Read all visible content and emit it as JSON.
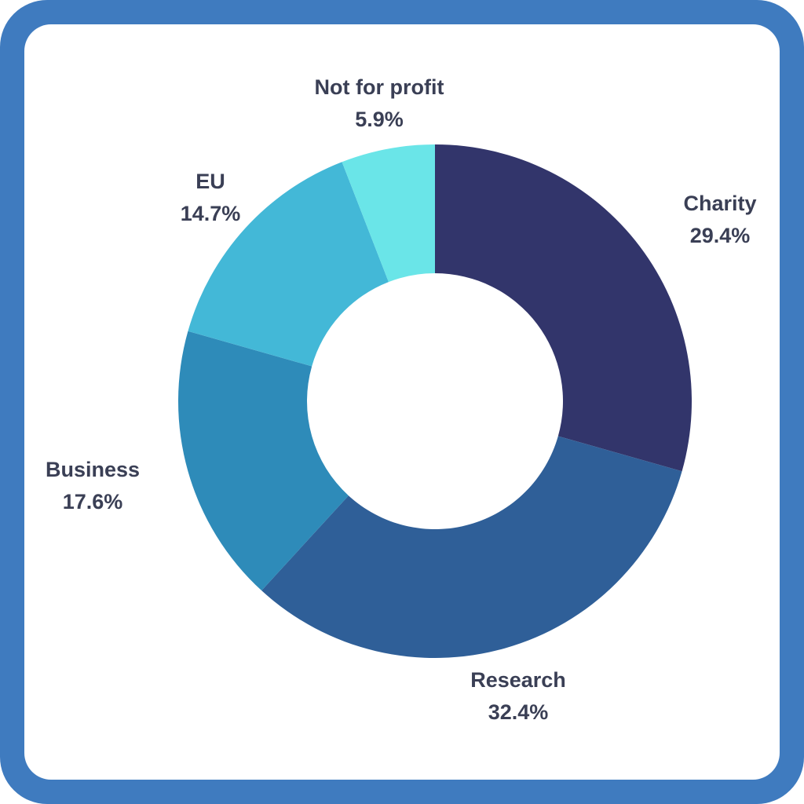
{
  "chart_data": {
    "type": "pie",
    "variant": "donut",
    "legend": "none",
    "slices": [
      {
        "label": "Charity",
        "value": 29.4,
        "display": "29.4%",
        "color": "#32356b"
      },
      {
        "label": "Research",
        "value": 32.4,
        "display": "32.4%",
        "color": "#2f5f98"
      },
      {
        "label": "Business",
        "value": 17.6,
        "display": "17.6%",
        "color": "#2e8bb9"
      },
      {
        "label": "EU",
        "value": 14.7,
        "display": "14.7%",
        "color": "#43b8d7"
      },
      {
        "label": "Not for profit",
        "value": 5.9,
        "display": "5.9%",
        "color": "#6ae5e8"
      }
    ]
  },
  "colors": {
    "frame": "#3f7bbf",
    "panel": "#ffffff",
    "label_text": "#3a3f55"
  }
}
